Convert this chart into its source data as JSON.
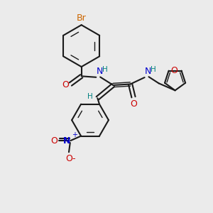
{
  "bg_color": "#ebebeb",
  "bond_color": "#1a1a1a",
  "N_color": "#0000cc",
  "O_color": "#cc0000",
  "Br_color": "#cc6600",
  "H_color": "#008080",
  "figsize": [
    3.0,
    3.0
  ],
  "dpi": 100,
  "xlim": [
    0,
    10
  ],
  "ylim": [
    0,
    10
  ]
}
